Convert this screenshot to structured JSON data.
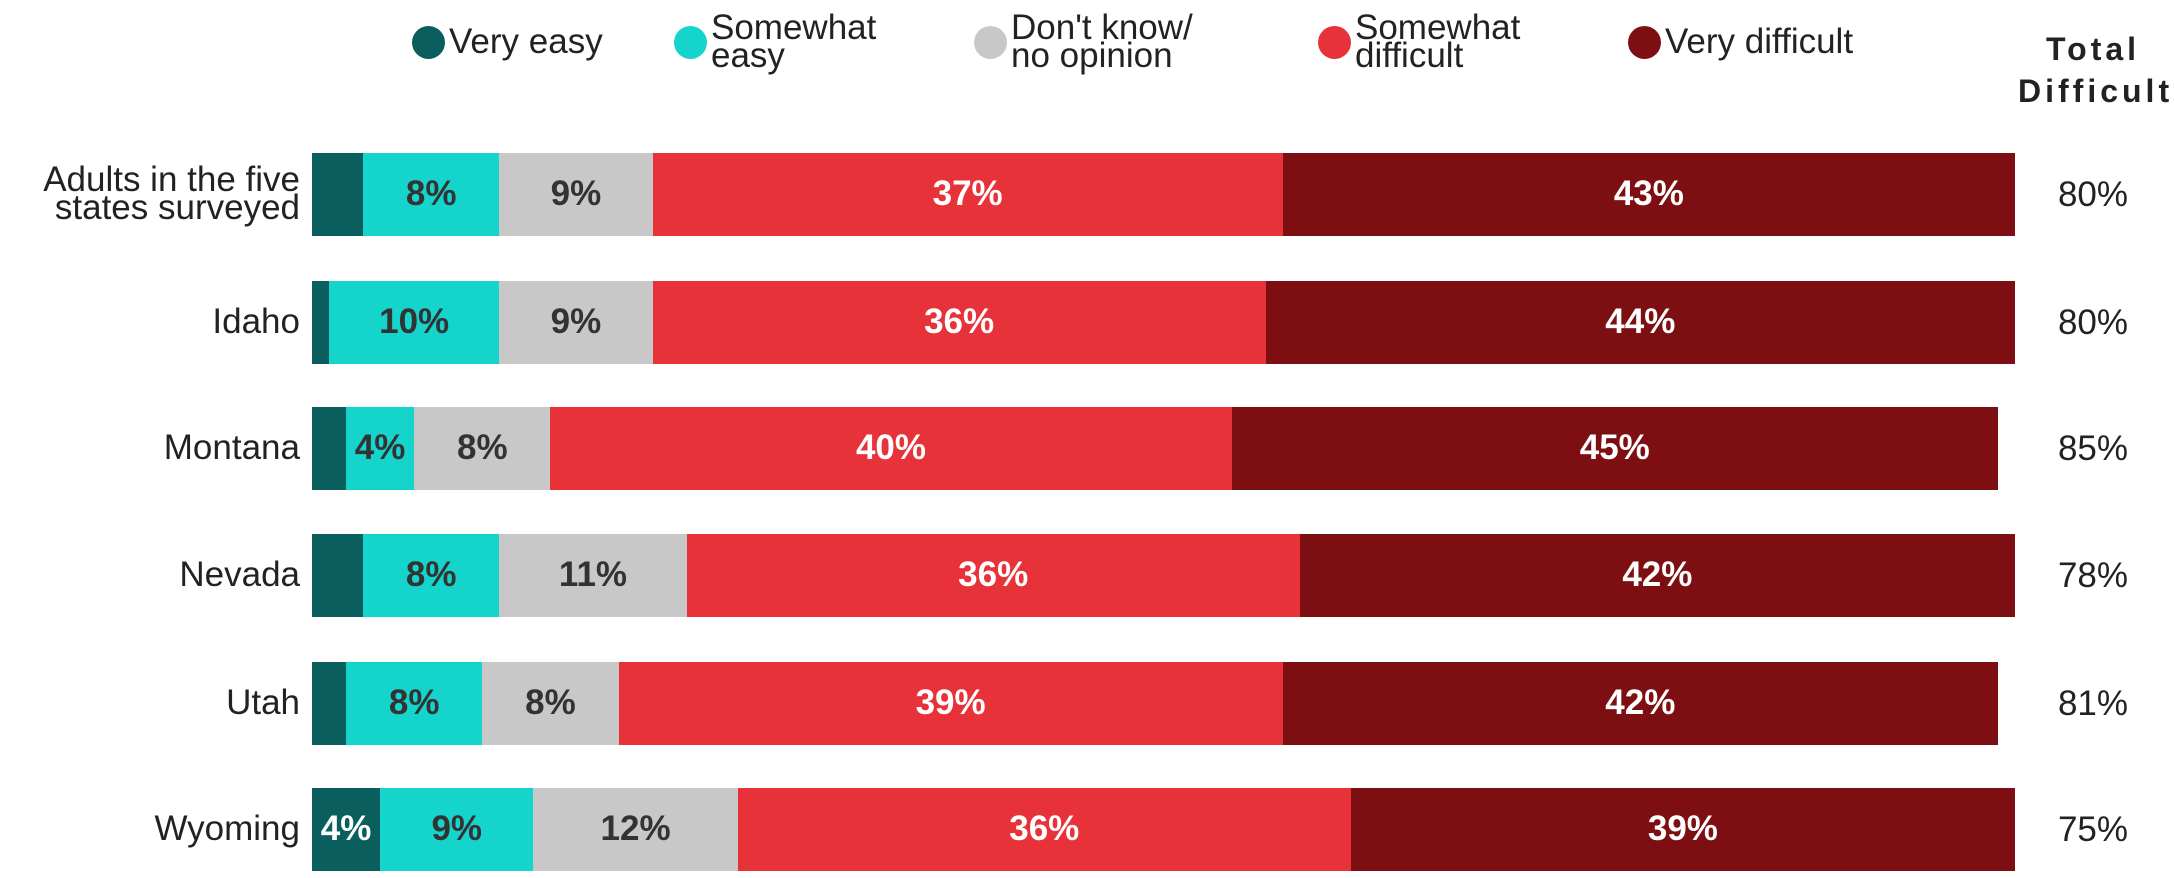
{
  "chart_data": {
    "type": "stacked-bar-horizontal",
    "categories": [
      "Adults in the five states surveyed",
      "Idaho",
      "Montana",
      "Nevada",
      "Utah",
      "Wyoming"
    ],
    "xlim": [
      0,
      100
    ],
    "series": [
      {
        "name": "Very easy",
        "color": "#0b5e5e",
        "values": [
          3,
          1,
          2,
          3,
          2,
          4
        ],
        "value_labels": [
          null,
          null,
          null,
          null,
          null,
          "4%"
        ]
      },
      {
        "name": "Somewhat easy",
        "color": "#14d4cc",
        "values": [
          8,
          10,
          4,
          8,
          8,
          9
        ],
        "value_labels": [
          "8%",
          "10%",
          "4%",
          "8%",
          "8%",
          "9%"
        ]
      },
      {
        "name": "Don't know/ no opinion",
        "color": "#c8c8c8",
        "values": [
          9,
          9,
          8,
          11,
          8,
          12
        ],
        "value_labels": [
          "9%",
          "9%",
          "8%",
          "11%",
          "8%",
          "12%"
        ]
      },
      {
        "name": "Somewhat difficult",
        "color": "#e8323a",
        "values": [
          37,
          36,
          40,
          36,
          39,
          36
        ],
        "value_labels": [
          "37%",
          "36%",
          "40%",
          "36%",
          "39%",
          "36%"
        ]
      },
      {
        "name": "Very difficult",
        "color": "#7d0f12",
        "values": [
          43,
          44,
          45,
          42,
          42,
          39
        ],
        "value_labels": [
          "43%",
          "44%",
          "45%",
          "42%",
          "42%",
          "39%"
        ]
      }
    ],
    "totals": {
      "title": "Total Difficult",
      "values": [
        80,
        80,
        85,
        78,
        81,
        75
      ],
      "value_labels": [
        "80%",
        "80%",
        "85%",
        "78%",
        "81%",
        "75%"
      ]
    }
  }
}
